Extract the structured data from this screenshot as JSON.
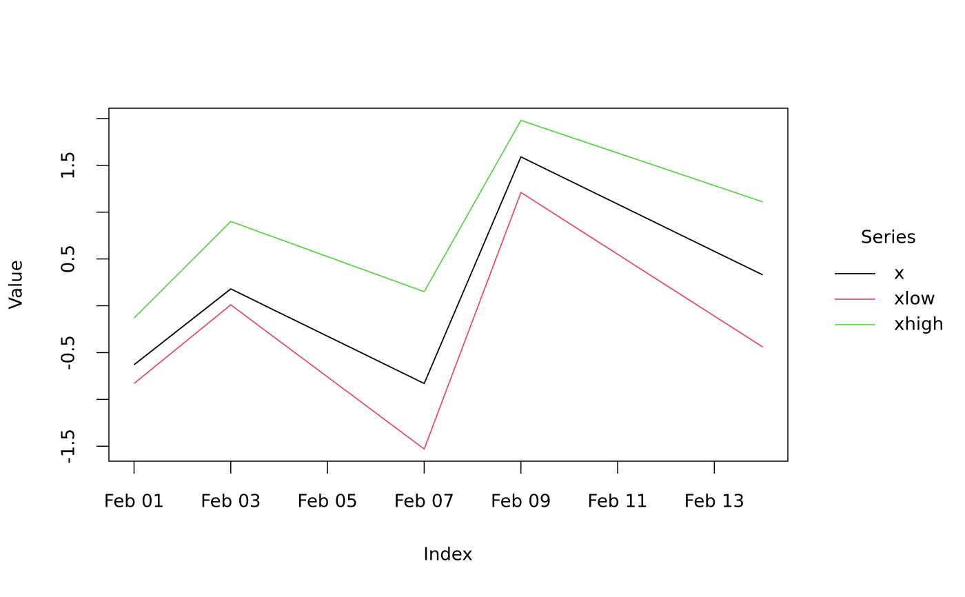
{
  "chart_data": {
    "type": "line",
    "x_label": "Index",
    "y_label": "Value",
    "legend_title": "Series",
    "legend": "right",
    "x": [
      "Feb 01",
      "Feb 03",
      "Feb 07",
      "Feb 09",
      "Feb 14"
    ],
    "series": [
      {
        "name": "x",
        "color": "#000000",
        "values": [
          -0.63,
          0.18,
          -0.83,
          1.59,
          0.33
        ]
      },
      {
        "name": "xlow",
        "color": "#DF536B",
        "values": [
          -0.83,
          0.01,
          -1.53,
          1.21,
          -0.44
        ]
      },
      {
        "name": "xhigh",
        "color": "#61D04F",
        "values": [
          -0.13,
          0.9,
          0.15,
          1.98,
          1.11
        ]
      }
    ],
    "xlim": [
      "Feb 01",
      "Feb 14"
    ],
    "xticks": [
      "Feb 01",
      "Feb 03",
      "Feb 05",
      "Feb 07",
      "Feb 09",
      "Feb 11",
      "Feb 13"
    ],
    "ylim": [
      -1.66,
      2.11
    ],
    "yticks": [
      {
        "value": -1.5,
        "label": "-1.5"
      },
      {
        "value": -1,
        "label": null
      },
      {
        "value": -0.5,
        "label": "-0.5"
      },
      {
        "value": 0,
        "label": null
      },
      {
        "value": 0.5,
        "label": "0.5"
      },
      {
        "value": 1,
        "label": null
      },
      {
        "value": 1.5,
        "label": "1.5"
      },
      {
        "value": 2,
        "label": null
      }
    ],
    "grid": false
  }
}
